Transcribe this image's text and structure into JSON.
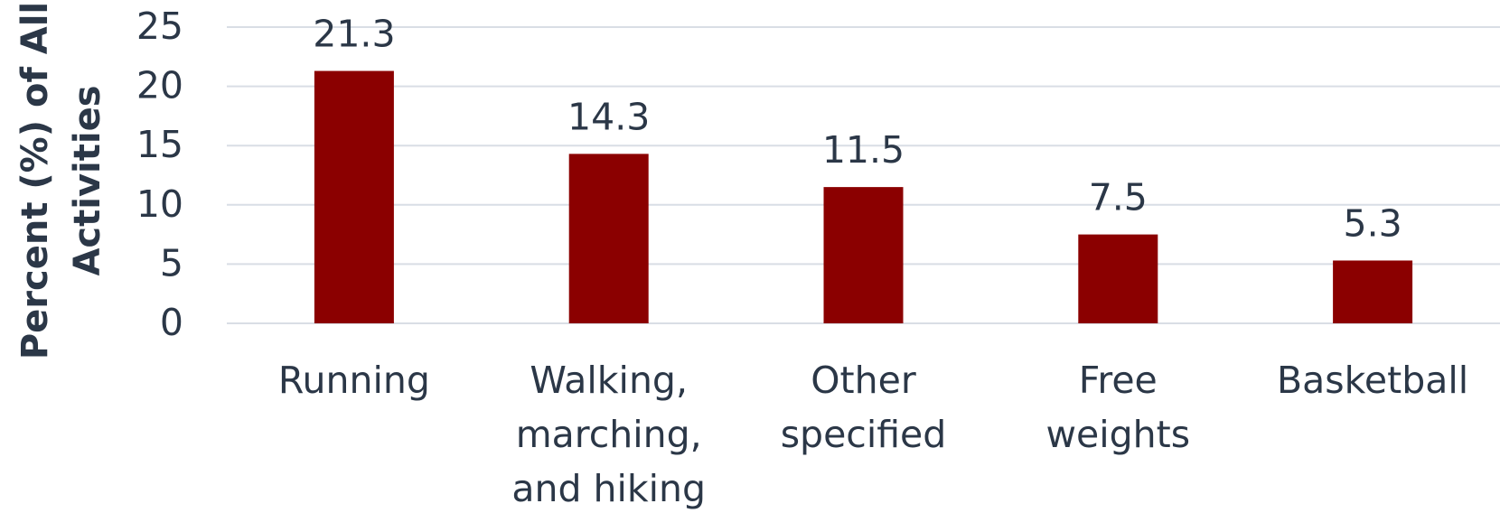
{
  "chart_data": {
    "type": "bar",
    "y_label": "Percent (%) of All Activities",
    "categories": [
      "Running",
      "Walking, marching, and hiking",
      "Other specified",
      "Free weights",
      "Basketball"
    ],
    "values": [
      21.3,
      14.3,
      11.5,
      7.5,
      5.3
    ],
    "color": "#8b0000",
    "ylim": [
      0,
      25
    ],
    "yticks": [
      0,
      5,
      10,
      15,
      20,
      25
    ],
    "grid": true
  }
}
